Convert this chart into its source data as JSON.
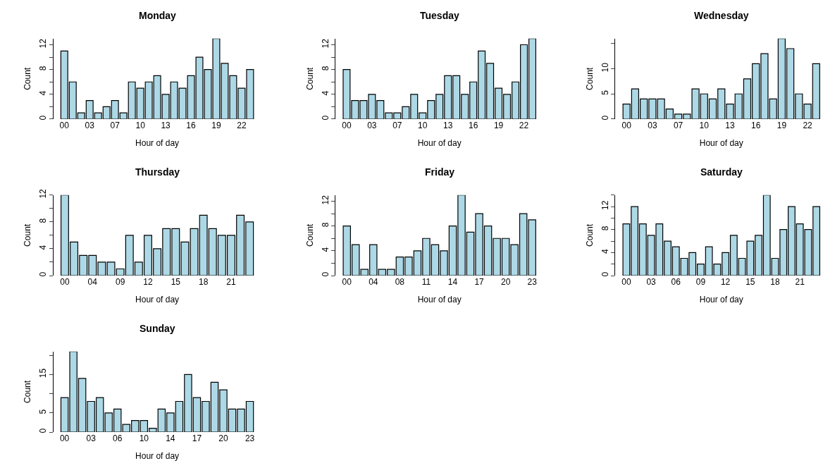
{
  "chart_data": [
    {
      "type": "bar",
      "title": "Monday",
      "xlabel": "Hour of day",
      "ylabel": "Count",
      "color": "#add8e6",
      "grid": false,
      "ylim": [
        0,
        13
      ],
      "yticks": [
        0,
        {
          "value": 2,
          "label": null
        },
        4,
        {
          "value": 6,
          "label": null
        },
        8,
        {
          "value": 10,
          "label": null
        },
        12
      ],
      "categories": [
        "00",
        null,
        null,
        "03",
        null,
        null,
        "07",
        null,
        null,
        "10",
        null,
        null,
        "13",
        null,
        null,
        "16",
        null,
        null,
        "19",
        null,
        null,
        "22",
        null
      ],
      "values": [
        11,
        6,
        1,
        3,
        1,
        2,
        3,
        1,
        6,
        5,
        6,
        7,
        4,
        6,
        5,
        7,
        10,
        8,
        13,
        9,
        7,
        5,
        8
      ]
    },
    {
      "type": "bar",
      "title": "Tuesday",
      "xlabel": "Hour of day",
      "ylabel": "Count",
      "color": "#add8e6",
      "grid": false,
      "ylim": [
        0,
        13
      ],
      "yticks": [
        0,
        {
          "value": 2,
          "label": null
        },
        4,
        {
          "value": 6,
          "label": null
        },
        8,
        {
          "value": 10,
          "label": null
        },
        12
      ],
      "categories": [
        "00",
        null,
        null,
        "03",
        null,
        null,
        "07",
        null,
        null,
        "10",
        null,
        null,
        "13",
        null,
        null,
        "16",
        null,
        null,
        "19",
        null,
        null,
        "22",
        null
      ],
      "values": [
        8,
        3,
        3,
        4,
        3,
        1,
        1,
        2,
        4,
        1,
        3,
        4,
        7,
        7,
        4,
        6,
        11,
        9,
        5,
        4,
        6,
        12,
        13
      ]
    },
    {
      "type": "bar",
      "title": "Wednesday",
      "xlabel": "Hour of day",
      "ylabel": "Count",
      "color": "#add8e6",
      "grid": false,
      "ylim": [
        0,
        16
      ],
      "yticks": [
        0,
        5,
        10,
        {
          "value": 15,
          "label": null
        }
      ],
      "categories": [
        "00",
        null,
        null,
        "03",
        null,
        null,
        "07",
        null,
        null,
        "10",
        null,
        null,
        "13",
        null,
        null,
        "16",
        null,
        null,
        "19",
        null,
        null,
        "22",
        null
      ],
      "values": [
        3,
        6,
        4,
        4,
        4,
        2,
        1,
        1,
        6,
        5,
        4,
        6,
        3,
        5,
        8,
        11,
        13,
        4,
        16,
        14,
        5,
        3,
        11
      ]
    },
    {
      "type": "bar",
      "title": "Thursday",
      "xlabel": "Hour of day",
      "ylabel": "Count",
      "color": "#add8e6",
      "grid": false,
      "ylim": [
        0,
        12
      ],
      "yticks": [
        0,
        {
          "value": 2,
          "label": null
        },
        4,
        {
          "value": 6,
          "label": null
        },
        8,
        {
          "value": 10,
          "label": null
        },
        12
      ],
      "categories": [
        "00",
        null,
        null,
        "04",
        null,
        null,
        "09",
        null,
        null,
        "12",
        null,
        null,
        "15",
        null,
        null,
        "18",
        null,
        null,
        "21",
        null,
        null
      ],
      "values": [
        12,
        5,
        3,
        3,
        2,
        2,
        1,
        6,
        2,
        6,
        4,
        7,
        7,
        5,
        7,
        9,
        7,
        6,
        6,
        9,
        8
      ]
    },
    {
      "type": "bar",
      "title": "Friday",
      "xlabel": "Hour of day",
      "ylabel": "Count",
      "color": "#add8e6",
      "grid": false,
      "ylim": [
        0,
        13
      ],
      "yticks": [
        0,
        {
          "value": 2,
          "label": null
        },
        4,
        {
          "value": 6,
          "label": null
        },
        8,
        {
          "value": 10,
          "label": null
        },
        12
      ],
      "categories": [
        "00",
        null,
        null,
        "04",
        null,
        null,
        "08",
        null,
        null,
        "11",
        null,
        null,
        "14",
        null,
        null,
        "17",
        null,
        null,
        "20",
        null,
        null,
        "23"
      ],
      "values": [
        8,
        5,
        1,
        5,
        1,
        1,
        3,
        3,
        4,
        6,
        5,
        4,
        8,
        13,
        7,
        10,
        8,
        6,
        6,
        5,
        10,
        9
      ]
    },
    {
      "type": "bar",
      "title": "Saturday",
      "xlabel": "Hour of day",
      "ylabel": "Count",
      "color": "#add8e6",
      "grid": false,
      "ylim": [
        0,
        14
      ],
      "yticks": [
        0,
        {
          "value": 2,
          "label": null
        },
        4,
        {
          "value": 6,
          "label": null
        },
        8,
        {
          "value": 10,
          "label": null
        },
        12,
        {
          "value": 14,
          "label": null
        }
      ],
      "categories": [
        "00",
        null,
        null,
        "03",
        null,
        null,
        "06",
        null,
        null,
        "09",
        null,
        null,
        "12",
        null,
        null,
        "15",
        null,
        null,
        "18",
        null,
        null,
        "21",
        null,
        null
      ],
      "values": [
        9,
        12,
        9,
        7,
        9,
        6,
        5,
        3,
        4,
        2,
        5,
        2,
        4,
        7,
        3,
        6,
        7,
        14,
        3,
        8,
        12,
        9,
        8,
        12
      ]
    },
    {
      "type": "bar",
      "title": "Sunday",
      "xlabel": "Hour of day",
      "ylabel": "Count",
      "color": "#add8e6",
      "grid": false,
      "ylim": [
        0,
        21
      ],
      "yticks": [
        0,
        5,
        {
          "value": 10,
          "label": null
        },
        15,
        {
          "value": 20,
          "label": null
        }
      ],
      "categories": [
        "00",
        null,
        null,
        "03",
        null,
        null,
        "06",
        null,
        null,
        "10",
        null,
        null,
        "14",
        null,
        null,
        "17",
        null,
        null,
        "20",
        null,
        null,
        "23"
      ],
      "values": [
        9,
        21,
        14,
        8,
        9,
        5,
        6,
        2,
        3,
        3,
        1,
        6,
        5,
        8,
        15,
        9,
        8,
        13,
        11,
        6,
        6,
        8
      ]
    }
  ]
}
